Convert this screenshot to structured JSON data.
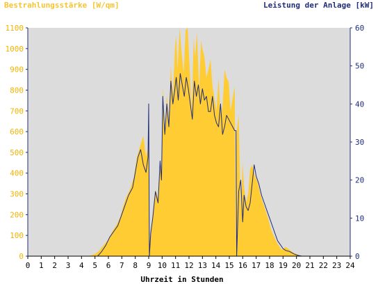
{
  "chart_data": {
    "type": "area",
    "left_axis_label": "Bestrahlungsstärke [W/qm]",
    "right_axis_label": "Leistung der Anlage [kW]",
    "xlabel": "Uhrzeit in Stunden",
    "x_ticks": [
      "0",
      "1",
      "2",
      "3",
      "4",
      "5",
      "6",
      "7",
      "8",
      "9",
      "10",
      "11",
      "12",
      "13",
      "14",
      "15",
      "16",
      "17",
      "18",
      "19",
      "20",
      "21",
      "22",
      "23",
      "24"
    ],
    "y_left_ticks": [
      "0",
      "100",
      "200",
      "300",
      "400",
      "500",
      "600",
      "700",
      "800",
      "900",
      "1000",
      "1100"
    ],
    "y_right_ticks": [
      "0",
      "10",
      "20",
      "30",
      "40",
      "50",
      "60"
    ],
    "xlim": [
      0,
      24
    ],
    "ylim_left": [
      0,
      1100
    ],
    "ylim_right": [
      0,
      60
    ],
    "grid": false,
    "series": [
      {
        "name": "Bestrahlungsstärke [W/qm]",
        "axis": "left",
        "kind": "area",
        "x": [
          0,
          4.5,
          5.0,
          5.3,
          5.6,
          6.0,
          6.3,
          6.6,
          6.9,
          7.1,
          7.3,
          7.6,
          7.9,
          8.1,
          8.4,
          8.6,
          8.8,
          8.95,
          9.0,
          9.05,
          9.15,
          9.3,
          9.5,
          9.7,
          9.85,
          9.95,
          10.05,
          10.2,
          10.35,
          10.5,
          10.65,
          10.8,
          10.95,
          11.05,
          11.15,
          11.3,
          11.45,
          11.6,
          11.75,
          11.9,
          12.05,
          12.2,
          12.35,
          12.45,
          12.6,
          12.75,
          12.9,
          13.0,
          13.15,
          13.3,
          13.45,
          13.6,
          13.75,
          13.9,
          14.05,
          14.2,
          14.35,
          14.5,
          14.65,
          14.8,
          14.95,
          15.1,
          15.25,
          15.4,
          15.5,
          15.55,
          15.7,
          15.85,
          16.0,
          16.1,
          16.25,
          16.4,
          16.55,
          16.7,
          16.85,
          16.95,
          17.1,
          17.3,
          17.5,
          17.7,
          17.9,
          18.1,
          18.3,
          18.5,
          18.7,
          18.9,
          19.0,
          19.2,
          19.5,
          19.8,
          20.1,
          20.4,
          21.0,
          24
        ],
        "values": [
          0,
          0,
          10,
          25,
          50,
          80,
          120,
          150,
          190,
          240,
          280,
          320,
          380,
          470,
          540,
          580,
          480,
          520,
          740,
          0,
          120,
          200,
          320,
          280,
          450,
          380,
          820,
          600,
          780,
          650,
          920,
          760,
          1000,
          1060,
          900,
          1100,
          980,
          880,
          1090,
          1100,
          900,
          700,
          1050,
          960,
          1080,
          800,
          1040,
          1000,
          960,
          860,
          900,
          950,
          820,
          760,
          700,
          860,
          680,
          720,
          900,
          860,
          840,
          700,
          760,
          820,
          0,
          600,
          680,
          220,
          450,
          330,
          260,
          300,
          420,
          440,
          400,
          380,
          360,
          300,
          260,
          220,
          180,
          130,
          100,
          70,
          50,
          30,
          35,
          45,
          30,
          15,
          8,
          0,
          0,
          0
        ]
      },
      {
        "name": "Leistung der Anlage [kW]",
        "axis": "right",
        "kind": "line",
        "x": [
          0,
          5.0,
          5.2,
          5.5,
          5.8,
          6.1,
          6.4,
          6.7,
          7.0,
          7.2,
          7.5,
          7.8,
          8.0,
          8.2,
          8.4,
          8.6,
          8.8,
          8.95,
          9.0,
          9.05,
          9.15,
          9.3,
          9.5,
          9.7,
          9.85,
          9.95,
          10.05,
          10.2,
          10.35,
          10.5,
          10.65,
          10.8,
          10.95,
          11.05,
          11.2,
          11.35,
          11.5,
          11.65,
          11.8,
          11.95,
          12.1,
          12.25,
          12.4,
          12.55,
          12.7,
          12.85,
          13.0,
          13.15,
          13.3,
          13.45,
          13.6,
          13.75,
          13.9,
          14.05,
          14.2,
          14.35,
          14.5,
          14.65,
          14.8,
          14.95,
          15.1,
          15.25,
          15.4,
          15.5,
          15.55,
          15.7,
          15.85,
          16.0,
          16.1,
          16.25,
          16.4,
          16.55,
          16.7,
          16.85,
          17.0,
          17.2,
          17.4,
          17.6,
          17.8,
          18.0,
          18.2,
          18.4,
          18.6,
          18.8,
          19.0,
          19.2,
          19.5,
          19.8,
          20.1,
          20.4,
          24
        ],
        "values": [
          0,
          0,
          0,
          1.2,
          2.8,
          5,
          6.5,
          8,
          11,
          13,
          16,
          18,
          22,
          26,
          28,
          24,
          22,
          26,
          40,
          0,
          6,
          10,
          17,
          14,
          25,
          20,
          42,
          32,
          40,
          34,
          46,
          40,
          44,
          47,
          41,
          48,
          45,
          42,
          47,
          44,
          40,
          36,
          46,
          42,
          45,
          40,
          44,
          41,
          42,
          38,
          38,
          42,
          37,
          35,
          34,
          40,
          32,
          34,
          37,
          36,
          35,
          34,
          33,
          33,
          0,
          17,
          20,
          9,
          16,
          13,
          12,
          14,
          19,
          24,
          21,
          19,
          16,
          14,
          12,
          10,
          8,
          6,
          4,
          3,
          2,
          1.5,
          1.2,
          0.6,
          0.2,
          0,
          0
        ]
      }
    ]
  },
  "colors": {
    "plot_background": "#dcdcdc",
    "irradiance_fill": "#ffcc33",
    "power_line": "#1f2d7a",
    "left_axis_text": "#f2b400",
    "right_axis_text": "#1f2d7a",
    "axis_line": "#1f2d7a"
  }
}
